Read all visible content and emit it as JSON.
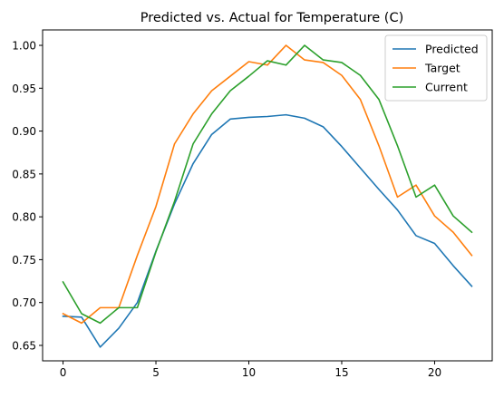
{
  "chart_data": {
    "type": "line",
    "title": "Predicted vs. Actual for Temperature (C)",
    "xlabel": "",
    "ylabel": "",
    "xlim": [
      -1.1,
      23.1
    ],
    "ylim": [
      0.632,
      1.018
    ],
    "xticks": [
      0,
      5,
      10,
      15,
      20
    ],
    "yticks": [
      0.65,
      0.7,
      0.75,
      0.8,
      0.85,
      0.9,
      0.95,
      1.0
    ],
    "x": [
      0,
      1,
      2,
      3,
      4,
      5,
      6,
      7,
      8,
      9,
      10,
      11,
      12,
      13,
      14,
      15,
      16,
      17,
      18,
      19,
      20,
      21,
      22
    ],
    "legend_position": "upper-right",
    "grid": false,
    "series": [
      {
        "name": "Predicted",
        "color": "#1f77b4",
        "values": [
          0.684,
          0.683,
          0.648,
          0.67,
          0.7,
          0.76,
          0.815,
          0.862,
          0.896,
          0.914,
          0.916,
          0.917,
          0.919,
          0.915,
          0.905,
          0.882,
          0.857,
          0.832,
          0.808,
          0.778,
          0.769,
          0.743,
          0.719
        ]
      },
      {
        "name": "Target",
        "color": "#ff7f0e",
        "values": [
          0.687,
          0.676,
          0.694,
          0.694,
          0.755,
          0.812,
          0.885,
          0.92,
          0.947,
          0.964,
          0.981,
          0.977,
          1.0,
          0.983,
          0.98,
          0.965,
          0.937,
          0.883,
          0.823,
          0.837,
          0.801,
          0.782,
          0.755
        ]
      },
      {
        "name": "Current",
        "color": "#2ca02c",
        "values": [
          0.724,
          0.687,
          0.676,
          0.694,
          0.694,
          0.759,
          0.818,
          0.885,
          0.92,
          0.947,
          0.964,
          0.982,
          0.977,
          1.0,
          0.983,
          0.98,
          0.965,
          0.937,
          0.883,
          0.823,
          0.837,
          0.801,
          0.782
        ]
      }
    ]
  }
}
